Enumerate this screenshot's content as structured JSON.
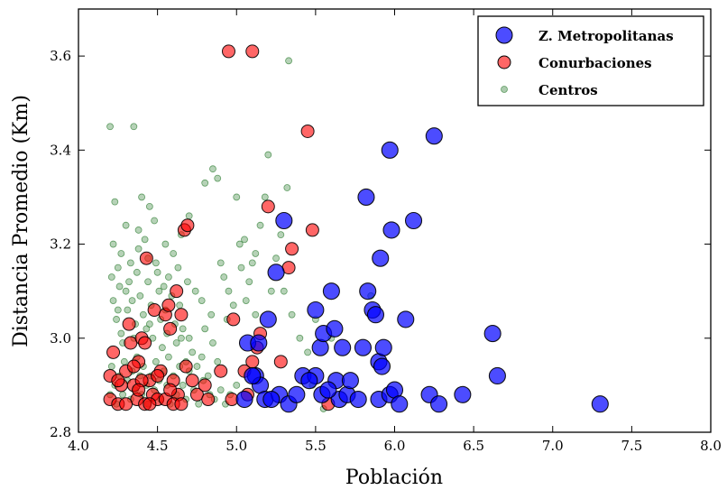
{
  "chart_data": {
    "type": "scatter",
    "xlabel": "Población",
    "ylabel": "Distancia Promedio (Km)",
    "xlim": [
      4.0,
      8.0
    ],
    "ylim": [
      2.8,
      3.7
    ],
    "xticks": [
      "4.0",
      "4.5",
      "5.0",
      "5.5",
      "6.0",
      "6.5",
      "7.0",
      "7.5",
      "8.0"
    ],
    "yticks": [
      "2.8",
      "3.0",
      "3.2",
      "3.4",
      "3.6"
    ],
    "grid": false,
    "legend_position": "top-right",
    "series": [
      {
        "name": "Z. Metropolitanas",
        "color": "#0000ff",
        "marker_size": "large",
        "points": [
          [
            5.05,
            2.87
          ],
          [
            5.07,
            2.99
          ],
          [
            5.12,
            2.92
          ],
          [
            5.15,
            2.9
          ],
          [
            5.18,
            2.87
          ],
          [
            5.2,
            3.04
          ],
          [
            5.25,
            3.14
          ],
          [
            5.27,
            2.88
          ],
          [
            5.3,
            3.25
          ],
          [
            5.33,
            2.86
          ],
          [
            5.38,
            2.88
          ],
          [
            5.42,
            2.92
          ],
          [
            5.5,
            2.92
          ],
          [
            5.5,
            3.06
          ],
          [
            5.53,
            2.98
          ],
          [
            5.55,
            3.01
          ],
          [
            5.6,
            3.1
          ],
          [
            5.62,
            3.02
          ],
          [
            5.63,
            2.91
          ],
          [
            5.65,
            2.87
          ],
          [
            5.67,
            2.98
          ],
          [
            5.7,
            2.88
          ],
          [
            5.72,
            2.91
          ],
          [
            5.77,
            2.87
          ],
          [
            5.8,
            2.98
          ],
          [
            5.82,
            3.3
          ],
          [
            5.83,
            3.1
          ],
          [
            5.86,
            3.06
          ],
          [
            5.88,
            3.05
          ],
          [
            5.9,
            2.95
          ],
          [
            5.9,
            2.87
          ],
          [
            5.91,
            3.17
          ],
          [
            5.92,
            2.94
          ],
          [
            5.93,
            2.98
          ],
          [
            5.97,
            3.4
          ],
          [
            5.98,
            3.23
          ],
          [
            5.97,
            2.88
          ],
          [
            6.0,
            2.89
          ],
          [
            6.03,
            2.86
          ],
          [
            6.07,
            3.04
          ],
          [
            6.12,
            3.25
          ],
          [
            6.22,
            2.88
          ],
          [
            6.25,
            3.43
          ],
          [
            6.28,
            2.86
          ],
          [
            6.43,
            2.88
          ],
          [
            6.62,
            3.01
          ],
          [
            6.65,
            2.92
          ],
          [
            7.3,
            2.86
          ],
          [
            5.1,
            2.92
          ],
          [
            5.14,
            2.99
          ],
          [
            5.22,
            2.87
          ],
          [
            5.46,
            2.91
          ],
          [
            5.54,
            2.88
          ],
          [
            5.58,
            2.89
          ]
        ]
      },
      {
        "name": "Conurbaciones",
        "color": "#ff0000",
        "marker_size": "medium",
        "points": [
          [
            4.2,
            2.92
          ],
          [
            4.2,
            2.87
          ],
          [
            4.22,
            2.97
          ],
          [
            4.25,
            2.86
          ],
          [
            4.27,
            2.9
          ],
          [
            4.3,
            2.93
          ],
          [
            4.32,
            3.03
          ],
          [
            4.33,
            2.99
          ],
          [
            4.35,
            2.9
          ],
          [
            4.37,
            2.87
          ],
          [
            4.38,
            2.95
          ],
          [
            4.4,
            3.0
          ],
          [
            4.42,
            2.86
          ],
          [
            4.43,
            3.17
          ],
          [
            4.45,
            2.91
          ],
          [
            4.47,
            2.88
          ],
          [
            4.48,
            3.06
          ],
          [
            4.5,
            2.87
          ],
          [
            4.52,
            2.93
          ],
          [
            4.55,
            3.05
          ],
          [
            4.57,
            3.07
          ],
          [
            4.58,
            3.02
          ],
          [
            4.6,
            2.91
          ],
          [
            4.62,
            3.1
          ],
          [
            4.63,
            2.88
          ],
          [
            4.65,
            3.05
          ],
          [
            4.67,
            3.23
          ],
          [
            4.68,
            2.94
          ],
          [
            4.69,
            3.24
          ],
          [
            4.72,
            2.91
          ],
          [
            4.75,
            2.88
          ],
          [
            4.8,
            2.9
          ],
          [
            4.82,
            2.87
          ],
          [
            4.9,
            2.93
          ],
          [
            4.95,
            3.61
          ],
          [
            4.97,
            2.87
          ],
          [
            4.98,
            3.04
          ],
          [
            5.05,
            2.93
          ],
          [
            5.07,
            2.88
          ],
          [
            5.1,
            3.61
          ],
          [
            5.1,
            2.95
          ],
          [
            5.13,
            2.98
          ],
          [
            5.15,
            3.01
          ],
          [
            5.2,
            3.28
          ],
          [
            5.28,
            2.95
          ],
          [
            5.33,
            3.15
          ],
          [
            5.35,
            3.19
          ],
          [
            5.45,
            3.44
          ],
          [
            5.48,
            3.23
          ],
          [
            5.58,
            2.86
          ],
          [
            4.3,
            2.86
          ],
          [
            4.4,
            2.91
          ],
          [
            4.55,
            2.87
          ],
          [
            4.6,
            2.86
          ],
          [
            4.65,
            2.86
          ],
          [
            4.25,
            2.91
          ],
          [
            4.35,
            2.94
          ],
          [
            4.45,
            2.86
          ],
          [
            4.5,
            2.92
          ],
          [
            4.58,
            2.89
          ],
          [
            4.38,
            2.89
          ],
          [
            4.42,
            2.99
          ]
        ]
      },
      {
        "name": "Centros",
        "color": "#2e7d32",
        "marker_size": "small",
        "points": [
          [
            4.2,
            3.45
          ],
          [
            4.35,
            3.45
          ],
          [
            4.4,
            3.3
          ],
          [
            4.45,
            3.28
          ],
          [
            4.23,
            3.29
          ],
          [
            4.3,
            3.24
          ],
          [
            4.38,
            3.23
          ],
          [
            4.42,
            3.21
          ],
          [
            4.48,
            3.25
          ],
          [
            4.55,
            3.2
          ],
          [
            4.6,
            3.18
          ],
          [
            4.65,
            3.22
          ],
          [
            4.7,
            3.26
          ],
          [
            4.8,
            3.33
          ],
          [
            4.85,
            3.36
          ],
          [
            4.88,
            3.34
          ],
          [
            5.0,
            3.3
          ],
          [
            5.05,
            3.21
          ],
          [
            5.1,
            3.16
          ],
          [
            5.18,
            3.3
          ],
          [
            5.2,
            3.39
          ],
          [
            5.25,
            3.17
          ],
          [
            5.32,
            3.32
          ],
          [
            5.33,
            3.59
          ],
          [
            5.35,
            3.05
          ],
          [
            5.4,
            3.0
          ],
          [
            5.45,
            2.97
          ],
          [
            5.48,
            2.9
          ],
          [
            5.55,
            2.85
          ],
          [
            4.21,
            3.13
          ],
          [
            4.22,
            3.08
          ],
          [
            4.24,
            3.04
          ],
          [
            4.25,
            3.15
          ],
          [
            4.26,
            3.11
          ],
          [
            4.27,
            3.01
          ],
          [
            4.28,
            2.99
          ],
          [
            4.3,
            3.1
          ],
          [
            4.31,
            3.06
          ],
          [
            4.32,
            3.12
          ],
          [
            4.34,
            3.08
          ],
          [
            4.36,
            3.03
          ],
          [
            4.37,
            3.14
          ],
          [
            4.39,
            3.09
          ],
          [
            4.41,
            3.05
          ],
          [
            4.43,
            3.02
          ],
          [
            4.44,
            3.12
          ],
          [
            4.46,
            3.07
          ],
          [
            4.47,
            3.0
          ],
          [
            4.49,
            3.16
          ],
          [
            4.51,
            3.1
          ],
          [
            4.52,
            3.04
          ],
          [
            4.53,
            2.98
          ],
          [
            4.54,
            3.11
          ],
          [
            4.56,
            3.01
          ],
          [
            4.57,
            2.96
          ],
          [
            4.59,
            3.09
          ],
          [
            4.61,
            3.03
          ],
          [
            4.62,
            2.99
          ],
          [
            4.64,
            3.07
          ],
          [
            4.66,
            3.02
          ],
          [
            4.68,
            2.95
          ],
          [
            4.7,
            3.0
          ],
          [
            4.72,
            2.97
          ],
          [
            4.75,
            2.94
          ],
          [
            4.78,
            2.96
          ],
          [
            4.8,
            3.02
          ],
          [
            4.82,
            2.92
          ],
          [
            4.85,
            2.99
          ],
          [
            4.88,
            2.95
          ],
          [
            4.9,
            3.16
          ],
          [
            4.92,
            3.13
          ],
          [
            4.95,
            3.1
          ],
          [
            4.98,
            3.07
          ],
          [
            5.02,
            3.2
          ],
          [
            5.03,
            3.15
          ],
          [
            5.08,
            3.12
          ],
          [
            5.12,
            3.18
          ],
          [
            5.15,
            3.24
          ],
          [
            5.22,
            3.1
          ],
          [
            5.28,
            3.22
          ],
          [
            4.2,
            2.88
          ],
          [
            4.21,
            2.94
          ],
          [
            4.23,
            2.9
          ],
          [
            4.24,
            2.86
          ],
          [
            4.26,
            2.92
          ],
          [
            4.28,
            2.88
          ],
          [
            4.29,
            2.95
          ],
          [
            4.31,
            2.91
          ],
          [
            4.33,
            2.87
          ],
          [
            4.34,
            2.93
          ],
          [
            4.36,
            2.89
          ],
          [
            4.37,
            2.96
          ],
          [
            4.39,
            2.92
          ],
          [
            4.4,
            2.88
          ],
          [
            4.41,
            2.94
          ],
          [
            4.43,
            2.9
          ],
          [
            4.44,
            2.86
          ],
          [
            4.46,
            2.92
          ],
          [
            4.48,
            2.89
          ],
          [
            4.49,
            2.95
          ],
          [
            4.51,
            2.91
          ],
          [
            4.52,
            2.87
          ],
          [
            4.54,
            2.93
          ],
          [
            4.56,
            2.9
          ],
          [
            4.58,
            2.86
          ],
          [
            4.6,
            2.92
          ],
          [
            4.62,
            2.88
          ],
          [
            4.64,
            2.94
          ],
          [
            4.66,
            2.9
          ],
          [
            4.68,
            2.87
          ],
          [
            4.7,
            2.93
          ],
          [
            4.73,
            2.89
          ],
          [
            4.76,
            2.86
          ],
          [
            4.79,
            2.91
          ],
          [
            4.83,
            2.88
          ],
          [
            4.86,
            2.87
          ],
          [
            4.9,
            2.89
          ],
          [
            4.93,
            2.86
          ],
          [
            4.96,
            2.88
          ],
          [
            5.0,
            2.9
          ],
          [
            4.22,
            3.2
          ],
          [
            4.27,
            3.18
          ],
          [
            4.33,
            3.16
          ],
          [
            4.38,
            3.19
          ],
          [
            4.44,
            3.17
          ],
          [
            4.5,
            3.14
          ],
          [
            4.57,
            3.13
          ],
          [
            4.63,
            3.15
          ],
          [
            4.69,
            3.12
          ],
          [
            4.74,
            3.1
          ],
          [
            4.78,
            3.08
          ],
          [
            4.84,
            3.05
          ],
          [
            4.94,
            3.04
          ],
          [
            5.06,
            3.08
          ],
          [
            5.12,
            3.05
          ],
          [
            5.3,
            3.1
          ],
          [
            5.5,
            3.04
          ],
          [
            5.6,
            3.0
          ],
          [
            5.85,
            3.09
          ],
          [
            4.25,
            3.06
          ],
          [
            4.35,
            3.0
          ],
          [
            4.45,
            3.03
          ],
          [
            4.55,
            3.06
          ],
          [
            4.65,
            3.0
          ]
        ]
      }
    ]
  }
}
